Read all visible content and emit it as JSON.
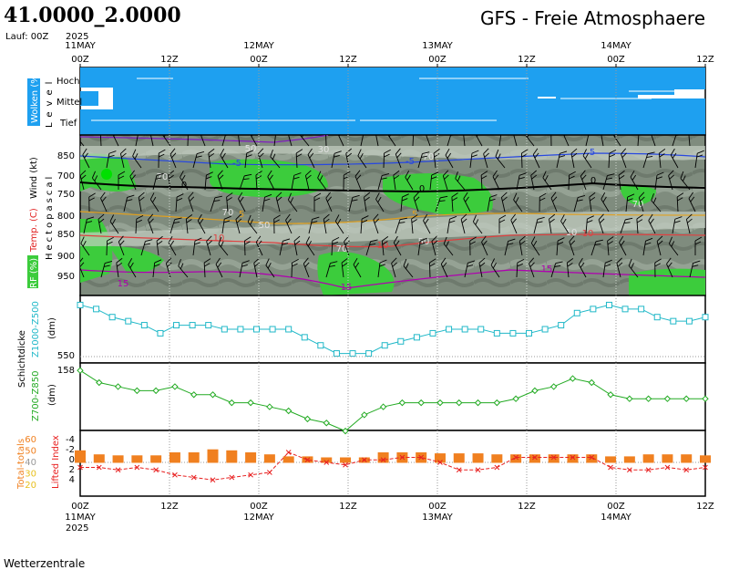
{
  "header": {
    "location": "41.0000_2.0000",
    "run": "Lauf: 00Z",
    "title": "GFS - Freie Atmosphaere",
    "year": "2025",
    "footer": "Wetterzentrale"
  },
  "time_axis": {
    "top_ticks": [
      {
        "label": "00Z",
        "date": "11MAY"
      },
      {
        "label": "12Z",
        "date": ""
      },
      {
        "label": "00Z",
        "date": "12MAY"
      },
      {
        "label": "12Z",
        "date": ""
      },
      {
        "label": "00Z",
        "date": "13MAY"
      },
      {
        "label": "12Z",
        "date": ""
      },
      {
        "label": "00Z",
        "date": "14MAY"
      },
      {
        "label": "12Z",
        "date": ""
      }
    ],
    "bottom_ticks": [
      {
        "label": "00Z",
        "date": "11MAY"
      },
      {
        "label": "12Z",
        "date": ""
      },
      {
        "label": "00Z",
        "date": "12MAY"
      },
      {
        "label": "12Z",
        "date": ""
      },
      {
        "label": "00Z",
        "date": "13MAY"
      },
      {
        "label": "12Z",
        "date": ""
      },
      {
        "label": "00Z",
        "date": "14MAY"
      },
      {
        "label": "12Z",
        "date": ""
      }
    ]
  },
  "cloud_panel": {
    "side_label": "Wolken (%)",
    "axis_title": "Level",
    "levels": [
      "Hoch",
      "Mittel",
      "Tief"
    ]
  },
  "atmos_panel": {
    "side_labels": [
      "RF (%)",
      "Temp. (C)",
      "Hectopascal",
      "Wind (kt)"
    ],
    "pressure_levels": [
      "850",
      "700",
      "750",
      "800",
      "850",
      "900",
      "950"
    ],
    "contour_labels": [
      "50",
      "30",
      "70",
      "5",
      "-5",
      "-5",
      "5",
      "0",
      "0",
      "0",
      "70",
      "70",
      "5",
      "10",
      "10",
      "10",
      "50",
      "50",
      "70",
      "70",
      "15",
      "15",
      "10",
      "15"
    ]
  },
  "thickness1": {
    "side_labels": [
      "Schichtdicke",
      "Z1000-Z500",
      "(dm)"
    ],
    "y_label": "550"
  },
  "thickness2": {
    "side_labels": [
      "Z700-Z850",
      "(dm)"
    ],
    "y_label": "158"
  },
  "indices": {
    "left_labels": [
      "Total-totals",
      "Lifted Index"
    ],
    "tt_ticks": [
      "60",
      "50",
      "40",
      "30",
      "20"
    ],
    "li_ticks": [
      "-4",
      "-2",
      "0",
      "2",
      "4"
    ]
  },
  "colors": {
    "cloud": "#1ea0f0",
    "humid_green": "#3ccc3c",
    "bg_gray": "#7f8c7e",
    "thickness1": "#20b8c8",
    "thickness2": "#22aa22",
    "totals_bar": "#f08020",
    "lifted": "#e82020"
  },
  "chart_data": [
    {
      "type": "line",
      "title": "Schichtdicke Z1000-Z500",
      "ylabel": "(dm)",
      "x_labels": [
        "00Z 11MAY",
        "12Z",
        "00Z 12MAY",
        "12Z",
        "00Z 13MAY",
        "12Z",
        "00Z 14MAY",
        "12Z"
      ],
      "y_tick_label": "550",
      "values": [
        562,
        561,
        559,
        558,
        557,
        555,
        557,
        557,
        557,
        556,
        556,
        556,
        556,
        556,
        554,
        552,
        550,
        550,
        550,
        552,
        553,
        554,
        555,
        556,
        556,
        556,
        555,
        555,
        555,
        556,
        557,
        560,
        561,
        562,
        561,
        561,
        559,
        558,
        558,
        559
      ]
    },
    {
      "type": "line",
      "title": "Z700-Z850",
      "ylabel": "(dm)",
      "y_tick_label": "158",
      "values": [
        158,
        155,
        154,
        153,
        153,
        154,
        152,
        152,
        150,
        150,
        149,
        148,
        146,
        145,
        143,
        147,
        149,
        150,
        150,
        150,
        150,
        150,
        150,
        151,
        153,
        154,
        156,
        155,
        152,
        151,
        151,
        151,
        151,
        151
      ]
    },
    {
      "type": "bar",
      "title": "Total-totals",
      "yticks": [
        20,
        30,
        40,
        50,
        60
      ],
      "values": [
        52,
        48,
        47,
        47,
        47,
        50,
        50,
        53,
        52,
        50,
        48,
        46,
        46,
        45,
        45,
        45,
        50,
        50,
        50,
        49,
        49,
        49,
        48,
        48,
        48,
        48,
        48,
        48,
        46,
        46,
        48,
        48,
        48,
        47
      ]
    },
    {
      "type": "line",
      "title": "Lifted Index",
      "yticks": [
        -4,
        -2,
        0,
        2,
        4
      ],
      "values": [
        -1,
        -1,
        -1.5,
        -1,
        -1.5,
        -2.5,
        -3,
        -3.5,
        -3,
        -2.5,
        -2,
        2,
        0.5,
        0,
        -0.5,
        0.5,
        0.5,
        1,
        1,
        0,
        -1.5,
        -1.5,
        -1,
        1,
        1,
        1,
        1,
        1,
        -1,
        -1.5,
        -1.5,
        -1,
        -1.5,
        -1
      ]
    }
  ]
}
